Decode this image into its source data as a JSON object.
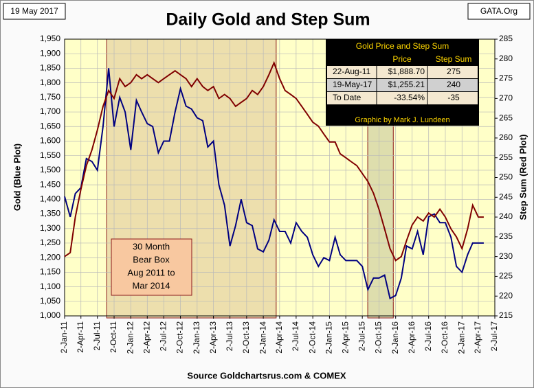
{
  "chart_data": {
    "type": "line",
    "title": "Daily Gold and Step Sum",
    "date_label": "19 May 2017",
    "source_tag": "GATA.Org",
    "ylabel": "Gold   (Blue Plot)",
    "y2label": "Step Sum   (Red Plot)",
    "xlabel": "Source Goldchartsrus.com & COMEX",
    "grid": true,
    "x": [
      "2011-01-02",
      "2011-02-02",
      "2011-03-02",
      "2011-04-02",
      "2011-05-02",
      "2011-06-02",
      "2011-07-02",
      "2011-08-02",
      "2011-09-02",
      "2011-10-02",
      "2011-11-02",
      "2011-12-02",
      "2012-01-02",
      "2012-02-02",
      "2012-03-02",
      "2012-04-02",
      "2012-05-02",
      "2012-06-02",
      "2012-07-02",
      "2012-08-02",
      "2012-09-02",
      "2012-10-02",
      "2012-11-02",
      "2012-12-02",
      "2013-01-02",
      "2013-02-02",
      "2013-03-02",
      "2013-04-02",
      "2013-05-02",
      "2013-06-02",
      "2013-07-02",
      "2013-08-02",
      "2013-09-02",
      "2013-10-02",
      "2013-11-02",
      "2013-12-02",
      "2014-01-02",
      "2014-02-02",
      "2014-03-02",
      "2014-04-02",
      "2014-05-02",
      "2014-06-02",
      "2014-07-02",
      "2014-08-02",
      "2014-09-02",
      "2014-10-02",
      "2014-11-02",
      "2014-12-02",
      "2015-01-02",
      "2015-02-02",
      "2015-03-02",
      "2015-04-02",
      "2015-05-02",
      "2015-06-02",
      "2015-07-02",
      "2015-08-02",
      "2015-09-02",
      "2015-10-02",
      "2015-11-02",
      "2015-12-02",
      "2016-01-02",
      "2016-02-02",
      "2016-03-02",
      "2016-04-02",
      "2016-05-02",
      "2016-06-02",
      "2016-07-02",
      "2016-08-02",
      "2016-09-02",
      "2016-10-02",
      "2016-11-02",
      "2016-12-02",
      "2017-01-02",
      "2017-02-02",
      "2017-03-02",
      "2017-04-02",
      "2017-05-02"
    ],
    "series": [
      {
        "color": "#000080",
        "axis": "y",
        "values": [
          1410,
          1340,
          1420,
          1440,
          1540,
          1530,
          1500,
          1650,
          1850,
          1650,
          1750,
          1700,
          1570,
          1740,
          1700,
          1660,
          1650,
          1560,
          1600,
          1600,
          1700,
          1780,
          1720,
          1710,
          1680,
          1670,
          1580,
          1600,
          1450,
          1380,
          1240,
          1310,
          1400,
          1320,
          1310,
          1230,
          1220,
          1260,
          1330,
          1290,
          1290,
          1250,
          1320,
          1290,
          1270,
          1210,
          1170,
          1200,
          1190,
          1270,
          1210,
          1190,
          1190,
          1190,
          1170,
          1090,
          1130,
          1130,
          1140,
          1060,
          1070,
          1130,
          1240,
          1230,
          1290,
          1210,
          1340,
          1350,
          1320,
          1320,
          1270,
          1170,
          1150,
          1210,
          1250,
          1250,
          1250
        ]
      },
      {
        "color": "#800000",
        "axis": "y2",
        "values": [
          230,
          231,
          240,
          247,
          253,
          257,
          262,
          268,
          272,
          270,
          275,
          273,
          274,
          276,
          275,
          276,
          275,
          274,
          275,
          276,
          277,
          276,
          275,
          273,
          275,
          273,
          272,
          273,
          270,
          271,
          270,
          268,
          269,
          270,
          272,
          271,
          273,
          276,
          279,
          275,
          272,
          271,
          270,
          268,
          266,
          264,
          263,
          261,
          259,
          259,
          256,
          255,
          254,
          253,
          251,
          249,
          246,
          242,
          237,
          232,
          229,
          230,
          234,
          238,
          240,
          239,
          241,
          240,
          242,
          240,
          237,
          235,
          232,
          237,
          243,
          240,
          240
        ]
      }
    ],
    "xlim": [
      "2011-01-02",
      "2017-07-02"
    ],
    "xticks": [
      {
        "value": "2011-01-02",
        "label": "2-Jan-11"
      },
      {
        "value": "2011-04-02",
        "label": "2-Apr-11"
      },
      {
        "value": "2011-07-02",
        "label": "2-Jul-11"
      },
      {
        "value": "2011-10-02",
        "label": "2-Oct-11"
      },
      {
        "value": "2012-01-02",
        "label": "2-Jan-12"
      },
      {
        "value": "2012-04-02",
        "label": "2-Apr-12"
      },
      {
        "value": "2012-07-02",
        "label": "2-Jul-12"
      },
      {
        "value": "2012-10-02",
        "label": "2-Oct-12"
      },
      {
        "value": "2013-01-02",
        "label": "2-Jan-13"
      },
      {
        "value": "2013-04-02",
        "label": "2-Apr-13"
      },
      {
        "value": "2013-07-02",
        "label": "2-Jul-13"
      },
      {
        "value": "2013-10-02",
        "label": "2-Oct-13"
      },
      {
        "value": "2014-01-02",
        "label": "2-Jan-14"
      },
      {
        "value": "2014-04-02",
        "label": "2-Apr-14"
      },
      {
        "value": "2014-07-02",
        "label": "2-Jul-14"
      },
      {
        "value": "2014-10-02",
        "label": "2-Oct-14"
      },
      {
        "value": "2015-01-02",
        "label": "2-Jan-15"
      },
      {
        "value": "2015-04-02",
        "label": "2-Apr-15"
      },
      {
        "value": "2015-07-02",
        "label": "2-Jul-15"
      },
      {
        "value": "2015-10-02",
        "label": "2-Oct-15"
      },
      {
        "value": "2016-01-02",
        "label": "2-Jan-16"
      },
      {
        "value": "2016-04-02",
        "label": "2-Apr-16"
      },
      {
        "value": "2016-07-02",
        "label": "2-Jul-16"
      },
      {
        "value": "2016-10-02",
        "label": "2-Oct-16"
      },
      {
        "value": "2017-01-02",
        "label": "2-Jan-17"
      },
      {
        "value": "2017-04-02",
        "label": "2-Apr-17"
      },
      {
        "value": "2017-07-02",
        "label": "2-Jul-17"
      }
    ],
    "ylim": [
      1000,
      1950
    ],
    "yticks": [
      {
        "value": 1000,
        "label": "1,000"
      },
      {
        "value": 1050,
        "label": "1,050"
      },
      {
        "value": 1100,
        "label": "1,100"
      },
      {
        "value": 1150,
        "label": "1,150"
      },
      {
        "value": 1200,
        "label": "1,200"
      },
      {
        "value": 1250,
        "label": "1,250"
      },
      {
        "value": 1300,
        "label": "1,300"
      },
      {
        "value": 1350,
        "label": "1,350"
      },
      {
        "value": 1400,
        "label": "1,400"
      },
      {
        "value": 1450,
        "label": "1,450"
      },
      {
        "value": 1500,
        "label": "1,500"
      },
      {
        "value": 1550,
        "label": "1,550"
      },
      {
        "value": 1600,
        "label": "1,600"
      },
      {
        "value": 1650,
        "label": "1,650"
      },
      {
        "value": 1700,
        "label": "1,700"
      },
      {
        "value": 1750,
        "label": "1,750"
      },
      {
        "value": 1800,
        "label": "1,800"
      },
      {
        "value": 1850,
        "label": "1,850"
      },
      {
        "value": 1900,
        "label": "1,900"
      },
      {
        "value": 1950,
        "label": "1,950"
      }
    ],
    "y2lim": [
      215,
      285
    ],
    "y2ticks": [
      215,
      220,
      225,
      230,
      235,
      240,
      245,
      250,
      255,
      260,
      265,
      270,
      275,
      280,
      285
    ],
    "highlights": [
      {
        "start": "2011-08-22",
        "end": "2014-03-14"
      },
      {
        "start": "2015-08-01",
        "end": "2015-12-20"
      }
    ],
    "annotation": [
      "30 Month",
      "Bear Box",
      "Aug 2011 to",
      "Mar 2014"
    ],
    "table": {
      "title": "Gold Price and Step Sum",
      "columns": [
        "Price",
        "Step Sum"
      ],
      "rows": [
        [
          "22-Aug-11",
          "$1,888.70",
          "275"
        ],
        [
          "19-May-17",
          "$1,255.21",
          "240"
        ],
        [
          "To Date",
          "-33.54%",
          "-35"
        ]
      ],
      "footer": "Graphic by Mark J. Lundeen"
    }
  }
}
